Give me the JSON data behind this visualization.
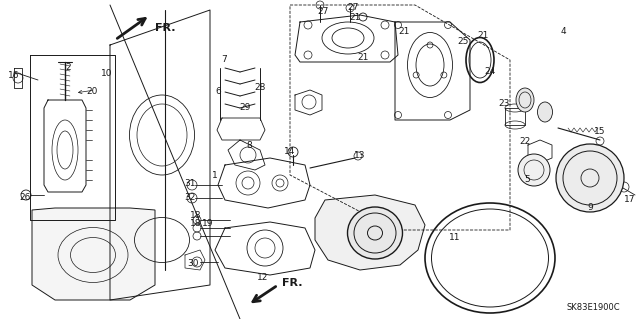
{
  "bg_color": "#ffffff",
  "line_color": "#1a1a1a",
  "diagram_code": "SK83E1900C",
  "fig_w": 6.4,
  "fig_h": 3.19,
  "font_size": 6.5,
  "code_font_size": 6
}
